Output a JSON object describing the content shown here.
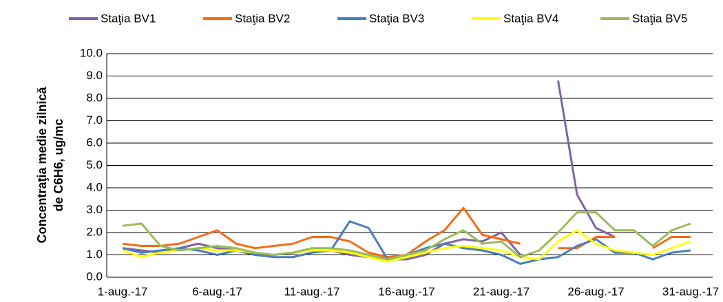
{
  "chart_data": {
    "type": "line",
    "ylabel": [
      "Concentraţia medie zilnică",
      "de C6H6, ug/mc"
    ],
    "categories": [
      "1-aug.-17",
      null,
      null,
      null,
      null,
      "6-aug.-17",
      null,
      null,
      null,
      null,
      "11-aug.-17",
      null,
      null,
      null,
      null,
      "16-aug.-17",
      null,
      null,
      null,
      null,
      "21-aug.-17",
      null,
      null,
      null,
      null,
      "26-aug.-17",
      null,
      null,
      null,
      null,
      "31-aug.-17"
    ],
    "series": [
      {
        "name": "Staţia BV1",
        "color": "#8064a2",
        "values": [
          1.3,
          1.2,
          1.1,
          1.3,
          1.5,
          1.3,
          1.2,
          1.0,
          1.0,
          1.1,
          1.2,
          1.2,
          1.0,
          0.9,
          0.8,
          0.8,
          1.0,
          1.5,
          1.7,
          1.6,
          2.0,
          1.0,
          null,
          8.8,
          3.7,
          2.2,
          1.8,
          null,
          null,
          null,
          null
        ]
      },
      {
        "name": "Staţia BV2",
        "color": "#f96b14",
        "values": [
          1.5,
          1.4,
          1.4,
          1.5,
          1.8,
          2.1,
          1.5,
          1.3,
          1.4,
          1.5,
          1.8,
          1.8,
          1.6,
          1.1,
          0.9,
          1.0,
          1.6,
          2.1,
          3.1,
          1.9,
          1.7,
          1.5,
          null,
          1.3,
          1.3,
          1.8,
          1.8,
          null,
          1.3,
          1.8,
          1.8
        ]
      },
      {
        "name": "Staţia BV3",
        "color": "#4a7ebb",
        "values": [
          1.3,
          1.1,
          1.2,
          1.3,
          1.2,
          1.0,
          1.2,
          1.0,
          0.9,
          0.9,
          1.1,
          1.2,
          2.5,
          2.2,
          0.8,
          1.0,
          1.3,
          1.5,
          1.3,
          1.2,
          1.0,
          0.6,
          0.8,
          0.9,
          1.4,
          1.7,
          1.1,
          1.1,
          0.8,
          1.1,
          1.2
        ]
      },
      {
        "name": "Staţia BV4",
        "color": "#ffff00",
        "values": [
          1.2,
          0.9,
          1.1,
          1.2,
          1.3,
          1.2,
          1.2,
          1.1,
          1.0,
          1.1,
          1.2,
          1.2,
          1.1,
          0.9,
          0.7,
          0.9,
          1.1,
          1.3,
          1.4,
          1.3,
          1.2,
          0.9,
          0.8,
          1.6,
          2.1,
          1.5,
          1.2,
          1.1,
          1.0,
          1.3,
          1.6
        ]
      },
      {
        "name": "Staţia BV5",
        "color": "#9bbb59",
        "values": [
          2.3,
          2.4,
          1.4,
          1.2,
          1.3,
          1.4,
          1.3,
          1.1,
          1.0,
          1.1,
          1.3,
          1.3,
          1.2,
          1.0,
          0.8,
          1.0,
          1.2,
          1.7,
          2.1,
          1.5,
          1.6,
          0.9,
          1.2,
          2.0,
          2.9,
          2.9,
          2.1,
          2.1,
          1.4,
          2.1,
          2.4
        ]
      }
    ],
    "ylim": [
      0,
      10
    ],
    "yticks": [
      {
        "value": 0,
        "label": "0.0"
      },
      {
        "value": 1,
        "label": "1.0"
      },
      {
        "value": 2,
        "label": "2.0"
      },
      {
        "value": 3,
        "label": "3.0"
      },
      {
        "value": 4,
        "label": "4.0"
      },
      {
        "value": 5,
        "label": "5.0"
      },
      {
        "value": 6,
        "label": "6.0"
      },
      {
        "value": 7,
        "label": "7.0"
      },
      {
        "value": 8,
        "label": "8.0"
      },
      {
        "value": 9,
        "label": "9.0"
      },
      {
        "value": 10,
        "label": "10.0"
      }
    ],
    "grid": true,
    "legend": "top"
  }
}
